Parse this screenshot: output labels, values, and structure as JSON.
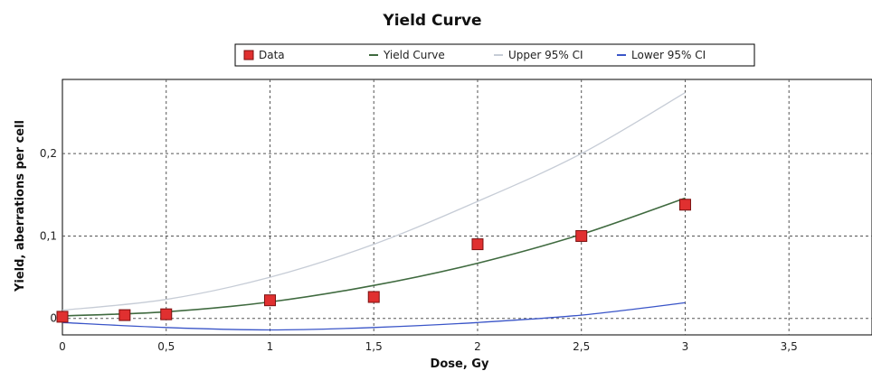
{
  "chart_data": {
    "type": "line",
    "title": "Yield Curve",
    "xlabel": "Dose, Gy",
    "ylabel": "Yield, aberrations per cell",
    "xlim": [
      0,
      3.9
    ],
    "ylim": [
      -0.02,
      0.29
    ],
    "x_ticks": [
      {
        "value": 0,
        "label": "0"
      },
      {
        "value": 0.5,
        "label": "0,5"
      },
      {
        "value": 1,
        "label": "1"
      },
      {
        "value": 1.5,
        "label": "1,5"
      },
      {
        "value": 2,
        "label": "2"
      },
      {
        "value": 2.5,
        "label": "2,5"
      },
      {
        "value": 3,
        "label": "3"
      },
      {
        "value": 3.5,
        "label": "3,5"
      }
    ],
    "y_ticks": [
      {
        "value": 0,
        "label": "0"
      },
      {
        "value": 0.1,
        "label": "0,1"
      },
      {
        "value": 0.2,
        "label": "0,2"
      }
    ],
    "grid": true,
    "legend_position": "top",
    "series": [
      {
        "name": "Data",
        "kind": "scatter",
        "color": "#e03030",
        "x": [
          0,
          0.3,
          0.5,
          1,
          1.5,
          2,
          2.5,
          3
        ],
        "y": [
          0.002,
          0.004,
          0.005,
          0.022,
          0.026,
          0.09,
          0.1,
          0.138
        ]
      },
      {
        "name": "Yield Curve",
        "kind": "line",
        "color": "#3f6a3f",
        "x": [
          0,
          0.5,
          1,
          1.5,
          2,
          2.5,
          3
        ],
        "y": [
          0.003,
          0.008,
          0.02,
          0.04,
          0.067,
          0.102,
          0.146
        ]
      },
      {
        "name": "Upper 95% CI",
        "kind": "line",
        "color": "#c6ccd6",
        "x": [
          0,
          0.5,
          1,
          1.5,
          2,
          2.5,
          3
        ],
        "y": [
          0.01,
          0.023,
          0.05,
          0.09,
          0.142,
          0.2,
          0.274
        ]
      },
      {
        "name": "Lower 95% CI",
        "kind": "line",
        "color": "#3a55c8",
        "x": [
          0,
          0.5,
          1,
          1.5,
          2,
          2.5,
          3
        ],
        "y": [
          -0.005,
          -0.011,
          -0.014,
          -0.011,
          -0.005,
          0.004,
          0.019
        ]
      }
    ]
  }
}
